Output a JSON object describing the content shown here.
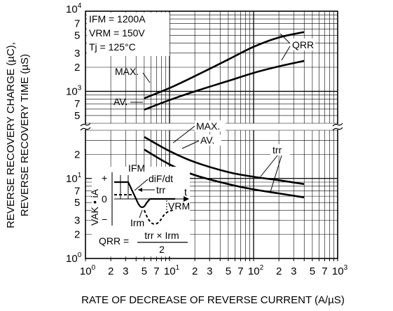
{
  "chart_data": {
    "type": "line",
    "xlabel": "RATE OF DECREASE OF REVERSE CURRENT  (A/µS)",
    "ylabel_lines": [
      "REVERSE RECOVERY CHARGE  (µC),",
      "REVERSE RECOVERY TIME  (µS)"
    ],
    "x_scale": "log",
    "xlim": [
      1,
      1000
    ],
    "y_scale": "log (broken axis: upper section 400–10000 µC, lower section 1–40 µS)",
    "x_ticks": [
      {
        "base": "10",
        "exp": "0",
        "v": 1
      },
      {
        "base": "2",
        "exp": "",
        "v": 2
      },
      {
        "base": "3",
        "exp": "",
        "v": 3
      },
      {
        "base": "5",
        "exp": "",
        "v": 5
      },
      {
        "base": "7",
        "exp": "",
        "v": 7
      },
      {
        "base": "10",
        "exp": "1",
        "v": 10
      },
      {
        "base": "2",
        "exp": "",
        "v": 20
      },
      {
        "base": "3",
        "exp": "",
        "v": 30
      },
      {
        "base": "5",
        "exp": "",
        "v": 50
      },
      {
        "base": "7",
        "exp": "",
        "v": 70
      },
      {
        "base": "10",
        "exp": "2",
        "v": 100
      },
      {
        "base": "2",
        "exp": "",
        "v": 200
      },
      {
        "base": "3",
        "exp": "",
        "v": 300
      },
      {
        "base": "5",
        "exp": "",
        "v": 500
      },
      {
        "base": "7",
        "exp": "",
        "v": 700
      },
      {
        "base": "10",
        "exp": "3",
        "v": 1000
      }
    ],
    "y_ticks_upper": [
      {
        "base": "10",
        "exp": "4",
        "v": 10000
      },
      {
        "base": "7",
        "exp": "",
        "v": 7000
      },
      {
        "base": "5",
        "exp": "",
        "v": 5000
      },
      {
        "base": "3",
        "exp": "",
        "v": 3000
      },
      {
        "base": "2",
        "exp": "",
        "v": 2000
      },
      {
        "base": "10",
        "exp": "3",
        "v": 1000
      },
      {
        "base": "7",
        "exp": "",
        "v": 700
      },
      {
        "base": "5",
        "exp": "",
        "v": 500
      }
    ],
    "y_ticks_lower": [
      {
        "base": "2",
        "exp": "",
        "v": 20
      },
      {
        "base": "10",
        "exp": "1",
        "v": 10
      },
      {
        "base": "7",
        "exp": "",
        "v": 7
      },
      {
        "base": "5",
        "exp": "",
        "v": 5
      },
      {
        "base": "3",
        "exp": "",
        "v": 3
      },
      {
        "base": "2",
        "exp": "",
        "v": 2
      },
      {
        "base": "10",
        "exp": "0",
        "v": 1
      }
    ],
    "conditions": [
      "IFM = 1200A",
      "VRM = 150V",
      "Tj = 125°C"
    ],
    "series": [
      {
        "name": "QRR MAX.",
        "section": "upper",
        "x": [
          5,
          10,
          20,
          50,
          100,
          200,
          400
        ],
        "y": [
          820,
          1100,
          1550,
          2500,
          3600,
          4700,
          5500
        ]
      },
      {
        "name": "QRR AV.",
        "section": "upper",
        "x": [
          5,
          10,
          20,
          50,
          100,
          200,
          400
        ],
        "y": [
          590,
          780,
          1000,
          1350,
          1700,
          2050,
          2400
        ]
      },
      {
        "name": "trr MAX.",
        "section": "lower",
        "x": [
          5,
          10,
          20,
          50,
          100,
          200,
          400
        ],
        "y": [
          33,
          22,
          16,
          12,
          10.5,
          9.5,
          8.5
        ]
      },
      {
        "name": "trr AV.",
        "section": "lower",
        "x": [
          5,
          10,
          20,
          50,
          100,
          200,
          400
        ],
        "y": [
          23,
          15,
          11,
          8.5,
          7.3,
          6.5,
          5.8
        ]
      }
    ],
    "labels": {
      "max_upper": "MAX.",
      "av_upper": "AV.",
      "max_lower": "MAX.",
      "av_lower": "AV.",
      "qrr": "QRR",
      "trr": "trr"
    },
    "inset": {
      "ifm": "IFM",
      "dif_dt": "diF/dt",
      "trr": "trr",
      "t": "t",
      "vrm": "VRM",
      "irm": "Irm",
      "plus": "+",
      "minus": "−",
      "zero": "0",
      "ylabel": "VAK • iA",
      "formula_lhs": "QRR =",
      "formula_num": "trr × Irm",
      "formula_den": "2"
    }
  }
}
